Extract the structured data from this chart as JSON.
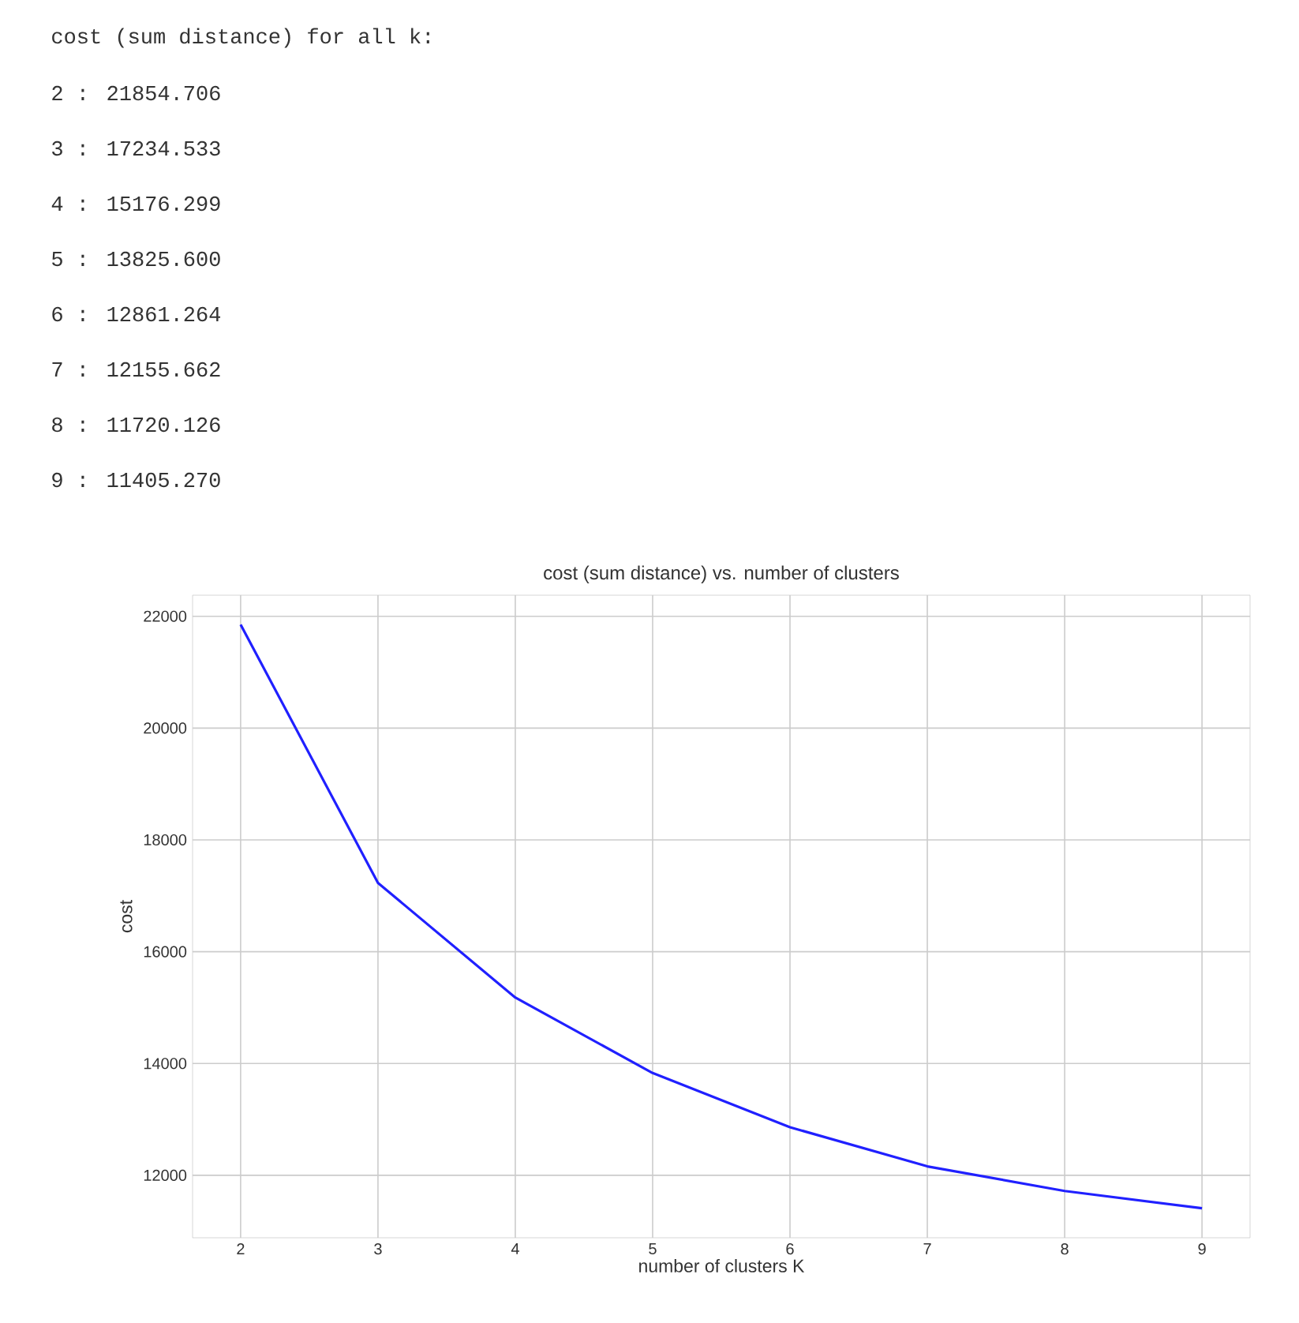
{
  "chart_data": {
    "type": "line",
    "title": "cost (sum distance) vs. number of clusters",
    "xlabel": "number of clusters K",
    "ylabel": "cost",
    "x": [
      2,
      3,
      4,
      5,
      6,
      7,
      8,
      9
    ],
    "series": [
      {
        "color": "#2020ff",
        "values": [
          21850,
          17230,
          15180,
          13830,
          12860,
          12160,
          11720,
          11410
        ]
      }
    ],
    "xlim": [
      1.65,
      9.35
    ],
    "ylim": [
      10883,
      22377
    ],
    "xticks": [
      2,
      3,
      4,
      5,
      6,
      7,
      8,
      9
    ],
    "yticks": [
      12000,
      14000,
      16000,
      18000,
      20000,
      22000
    ],
    "grid": true,
    "annotations": [
      "cost (sum distance) for all k:",
      "2 : 21854.706",
      "3 : 17234.533",
      "4 : 15176.299",
      "5 : 13825.600",
      "6 : 12861.264",
      "7 : 12155.662",
      "8 : 11720.126",
      "9 : 11405.270"
    ]
  }
}
